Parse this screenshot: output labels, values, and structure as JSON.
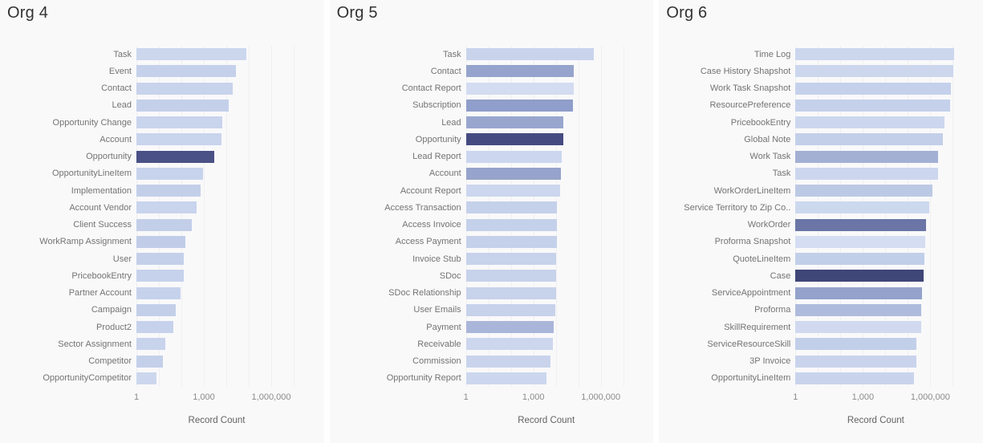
{
  "page": {
    "background": "#ffffff",
    "panel_background": "#f9f9fa",
    "gridline_color": "#f0f0f2"
  },
  "axis": {
    "scale": "log10",
    "ticks": [
      {
        "label": "1",
        "decade": 0
      },
      {
        "label": "1,000",
        "decade": 3
      },
      {
        "label": "1,000,000",
        "decade": 6
      }
    ],
    "gridline_decades": [
      0,
      1,
      2,
      3,
      4,
      5,
      6,
      7
    ],
    "xlim_decades": [
      0,
      7.9
    ],
    "grid": true,
    "legend": false
  },
  "chart_data": [
    {
      "type": "bar",
      "orientation": "horizontal",
      "title": "Org 4",
      "xlabel": "Record Count",
      "xscale": "log",
      "xticks": [
        "1",
        "1,000",
        "1,000,000"
      ],
      "categories": [
        "Task",
        "Event",
        "Contact",
        "Lead",
        "Opportunity Change",
        "Account",
        "Opportunity",
        "OpportunityLineItem",
        "Implementation",
        "Account Vendor",
        "Client Success",
        "WorkRamp Assignment",
        "User",
        "PricebookEntry",
        "Partner Account",
        "Campaign",
        "Product2",
        "Sector Assignment",
        "Competitor",
        "OpportunityCompetitor"
      ],
      "values": [
        80000,
        26000,
        19000,
        12500,
        6500,
        6000,
        3000,
        950,
        700,
        470,
        300,
        150,
        132,
        125,
        95,
        55,
        43,
        19,
        15,
        8
      ],
      "colors": [
        "#ccd7ee",
        "#c5d1eb",
        "#c8d3ec",
        "#c4d0ea",
        "#c9d4ed",
        "#c9d4ed",
        "#4a5186",
        "#c7d3ec",
        "#c3cfe9",
        "#c9d4ed",
        "#c3cfe9",
        "#c1cde8",
        "#c4d0ea",
        "#c6d2ec",
        "#c6d2ec",
        "#c3cfe9",
        "#c6d2eb",
        "#c8d3ec",
        "#c4d0ea",
        "#ccd7ee"
      ]
    },
    {
      "type": "bar",
      "orientation": "horizontal",
      "title": "Org 5",
      "xlabel": "Record Count",
      "xscale": "log",
      "xticks": [
        "1",
        "1,000",
        "1,000,000"
      ],
      "categories": [
        "Task",
        "Contact",
        "Contact Report",
        "Subscription",
        "Lead",
        "Opportunity",
        "Lead Report",
        "Account",
        "Account Report",
        "Access Transaction",
        "Access Invoice",
        "Access Payment",
        "Invoice Stub",
        "SDoc",
        "SDoc Relationship",
        "User Emails",
        "Payment",
        "Receivable",
        "Commission",
        "Opportunity Report"
      ],
      "values": [
        500000,
        63000,
        62000,
        58000,
        22400,
        22000,
        18000,
        16200,
        16000,
        11300,
        11200,
        11100,
        10100,
        10000,
        10000,
        9400,
        7800,
        7600,
        5900,
        3900
      ],
      "colors": [
        "#c9d4ec",
        "#96a4cd",
        "#d3dcf0",
        "#8f9eca",
        "#98a6ce",
        "#454b80",
        "#ccd6ee",
        "#96a3cb",
        "#ccd6ee",
        "#c5d1ea",
        "#c5d1ea",
        "#c5d1ea",
        "#c7d2eb",
        "#c7d2eb",
        "#c7d2eb",
        "#c7d2eb",
        "#aab6d9",
        "#ccd7ee",
        "#c9d4ec",
        "#ccd7ee"
      ]
    },
    {
      "type": "bar",
      "orientation": "horizontal",
      "title": "Org 6",
      "xlabel": "Record Count",
      "xscale": "log",
      "xticks": [
        "1",
        "1,000",
        "1,000,000"
      ],
      "categories": [
        "Time Log",
        "Case History Shapshot",
        "Work Task Snapshot",
        "ResourcePreference",
        "PricebookEntry",
        "Global Note",
        "Work Task",
        "Task",
        "WorkOrderLineItem",
        "Service Territory to Zip Co..",
        "WorkOrder",
        "Proforma Snapshot",
        "QuoteLineItem",
        "Case",
        "ServiceAppointment",
        "Proforma",
        "SkillRequirement",
        "ServiceResourceSkill",
        "3P Invoice",
        "OpportunityLineItem"
      ],
      "values": [
        11000000,
        10800000,
        8000000,
        7900000,
        4400000,
        3500000,
        2250000,
        2200000,
        1200000,
        920000,
        660000,
        600000,
        530000,
        500000,
        440000,
        385000,
        380000,
        248000,
        245000,
        190000
      ],
      "colors": [
        "#ccd7ee",
        "#ccd7ee",
        "#c5d1eb",
        "#c5d1eb",
        "#ccd7ee",
        "#c3cfe9",
        "#a3b0d4",
        "#ccd7ee",
        "#bcc9e4",
        "#ccd8ee",
        "#6b76a6",
        "#d4ddf1",
        "#c2cfe9",
        "#3f4678",
        "#94a2cc",
        "#aebbdc",
        "#d0d9ef",
        "#c2cfe9",
        "#c9d4ec",
        "#c9d4ec"
      ]
    }
  ]
}
